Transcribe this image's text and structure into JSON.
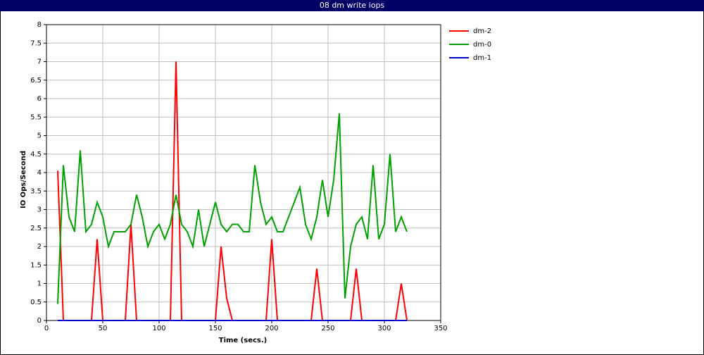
{
  "chart_data": {
    "type": "line",
    "title": "08 dm write iops",
    "x_label": "Time (secs.)",
    "y_label": "IO Ops/Second",
    "x": [
      10,
      15,
      20,
      25,
      30,
      35,
      40,
      45,
      50,
      55,
      60,
      65,
      70,
      75,
      80,
      85,
      90,
      95,
      100,
      105,
      110,
      115,
      120,
      125,
      130,
      135,
      140,
      145,
      150,
      155,
      160,
      165,
      170,
      175,
      180,
      185,
      190,
      195,
      200,
      205,
      210,
      215,
      220,
      225,
      230,
      235,
      240,
      245,
      250,
      255,
      260,
      265,
      270,
      275,
      280,
      285,
      290,
      295,
      300,
      305,
      310,
      315,
      320
    ],
    "series": [
      {
        "name": "dm-2",
        "color": "#ff0000",
        "values": [
          4.05,
          0,
          0,
          0,
          0,
          0,
          0,
          2.2,
          0,
          0,
          0,
          0,
          0,
          2.6,
          0,
          0,
          0,
          0,
          0,
          0,
          0,
          7,
          0,
          0,
          0,
          0,
          0,
          0,
          0,
          2,
          0.6,
          0,
          0,
          0,
          0,
          0,
          0,
          0,
          2.2,
          0,
          0,
          0,
          0,
          0,
          0,
          0,
          1.4,
          0,
          0,
          0,
          0,
          0,
          0,
          1.4,
          0,
          0,
          0,
          0,
          0,
          0,
          0,
          1,
          0
        ]
      },
      {
        "name": "dm-0",
        "color": "#00a000",
        "values": [
          0.45,
          4.2,
          2.8,
          2.4,
          4.6,
          2.4,
          2.6,
          3.2,
          2.8,
          2.0,
          2.4,
          2.4,
          2.4,
          2.6,
          3.4,
          2.8,
          2.0,
          2.4,
          2.6,
          2.2,
          2.6,
          3.4,
          2.6,
          2.4,
          2.0,
          3.0,
          2.0,
          2.6,
          3.2,
          2.6,
          2.4,
          2.6,
          2.6,
          2.4,
          2.4,
          4.2,
          3.2,
          2.6,
          2.8,
          2.4,
          2.4,
          2.8,
          3.2,
          3.6,
          2.6,
          2.2,
          2.8,
          3.8,
          2.8,
          3.8,
          5.6,
          0.6,
          2.0,
          2.6,
          2.8,
          2.2,
          4.2,
          2.2,
          2.6,
          4.5,
          2.4,
          2.8,
          2.4
        ]
      },
      {
        "name": "dm-1",
        "color": "#0000cc",
        "values": [
          0,
          0,
          0,
          0,
          0,
          0,
          0,
          0,
          0,
          0,
          0,
          0,
          0,
          0,
          0,
          0,
          0,
          0,
          0,
          0,
          0,
          0,
          0,
          0,
          0,
          0,
          0,
          0,
          0,
          0,
          0,
          0,
          0,
          0,
          0,
          0,
          0,
          0,
          0,
          0,
          0,
          0,
          0,
          0,
          0,
          0,
          0,
          0,
          0,
          0,
          0,
          0,
          0,
          0,
          0,
          0,
          0,
          0,
          0,
          0,
          0,
          0,
          0
        ]
      }
    ],
    "xlim": [
      0,
      350
    ],
    "xticks": [
      0,
      50,
      100,
      150,
      200,
      250,
      300,
      350
    ],
    "ylim": [
      0,
      8
    ],
    "yticks": [
      0,
      0.5,
      1,
      1.5,
      2,
      2.5,
      3,
      3.5,
      4,
      4.5,
      5,
      5.5,
      6,
      6.5,
      7,
      7.5,
      8
    ],
    "grid": true,
    "legend": "right"
  }
}
